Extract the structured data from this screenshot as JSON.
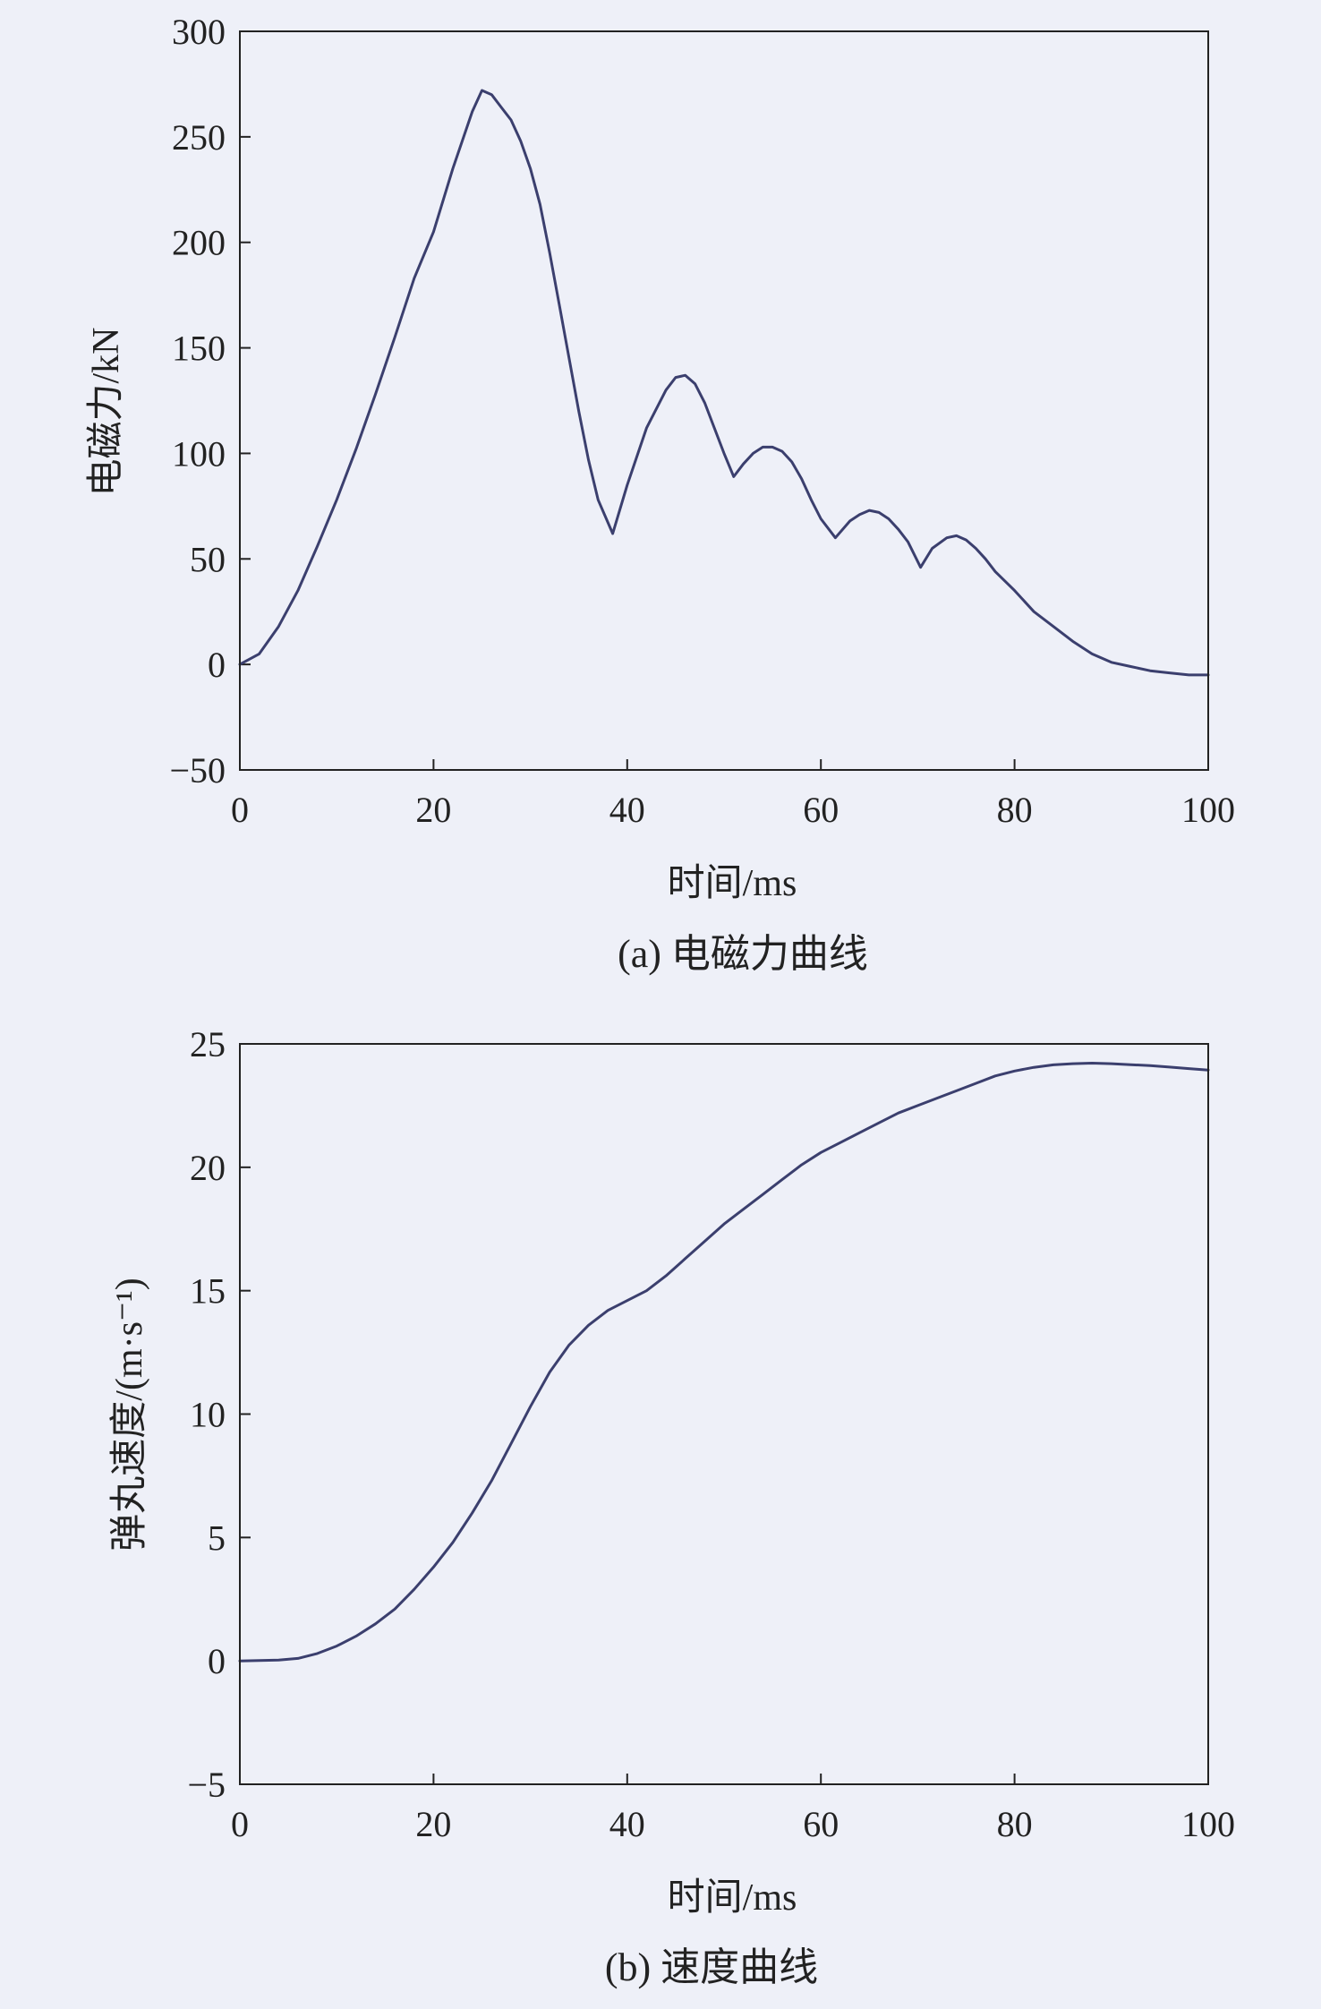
{
  "chart_data": [
    {
      "type": "line",
      "xlabel": "时间/ms",
      "ylabel": "电磁力/kN",
      "caption": "(a) 电磁力曲线",
      "xlim": [
        0,
        100
      ],
      "ylim": [
        -50,
        300
      ],
      "xticks": [
        "0",
        "20",
        "40",
        "60",
        "80",
        "100"
      ],
      "yticks": [
        "−50",
        "0",
        "50",
        "100",
        "150",
        "200",
        "250",
        "300"
      ],
      "grid": false,
      "color": "#3b3f6e",
      "series": [
        {
          "x": [
            0,
            2,
            4,
            6,
            8,
            10,
            12,
            14,
            16,
            18,
            20,
            22,
            24,
            25,
            26,
            27,
            28,
            29,
            30,
            31,
            32,
            33,
            34,
            35,
            36,
            37,
            38.5,
            40,
            42,
            44,
            45,
            46,
            47,
            48,
            49,
            50,
            51,
            52,
            53,
            54,
            55,
            56,
            57,
            58,
            59,
            60,
            61.5,
            63,
            64,
            65,
            66,
            67,
            68,
            69,
            70.3,
            71.5,
            73,
            74,
            75,
            76,
            77,
            78,
            80,
            82,
            84,
            86,
            88,
            90,
            92,
            94,
            96,
            98,
            100
          ],
          "y": [
            0,
            5,
            18,
            35,
            56,
            78,
            102,
            128,
            155,
            183,
            205,
            235,
            262,
            272,
            270,
            264,
            258,
            248,
            235,
            218,
            195,
            170,
            145,
            120,
            97,
            78,
            62,
            85,
            112,
            130,
            136,
            137,
            133,
            124,
            112,
            100,
            89,
            95,
            100,
            103,
            103,
            101,
            96,
            88,
            78,
            69,
            60,
            68,
            71,
            73,
            72,
            69,
            64,
            58,
            46,
            55,
            60,
            61,
            59,
            55,
            50,
            44,
            35,
            25,
            18,
            11,
            5,
            1,
            -1,
            -3,
            -4,
            -5,
            -5
          ]
        }
      ]
    },
    {
      "type": "line",
      "xlabel": "时间/ms",
      "ylabel": "弹丸速度/(m·s⁻¹)",
      "caption": "(b) 速度曲线",
      "xlim": [
        0,
        100
      ],
      "ylim": [
        -5,
        25
      ],
      "xticks": [
        "0",
        "20",
        "40",
        "60",
        "80",
        "100"
      ],
      "yticks": [
        "−5",
        "0",
        "5",
        "10",
        "15",
        "20",
        "25"
      ],
      "grid": false,
      "color": "#3b3f6e",
      "series": [
        {
          "x": [
            0,
            4,
            6,
            8,
            10,
            12,
            14,
            16,
            18,
            20,
            22,
            24,
            26,
            28,
            30,
            32,
            34,
            36,
            38,
            40,
            42,
            44,
            46,
            48,
            50,
            52,
            54,
            56,
            58,
            60,
            62,
            64,
            66,
            68,
            70,
            72,
            74,
            76,
            78,
            80,
            82,
            84,
            86,
            88,
            90,
            92,
            94,
            96,
            98,
            100
          ],
          "y": [
            0,
            0.03,
            0.1,
            0.3,
            0.6,
            1.0,
            1.5,
            2.1,
            2.9,
            3.8,
            4.8,
            6.0,
            7.3,
            8.8,
            10.3,
            11.7,
            12.8,
            13.6,
            14.2,
            14.6,
            15.0,
            15.6,
            16.3,
            17.0,
            17.7,
            18.3,
            18.9,
            19.5,
            20.1,
            20.6,
            21.0,
            21.4,
            21.8,
            22.2,
            22.5,
            22.8,
            23.1,
            23.4,
            23.7,
            23.9,
            24.05,
            24.15,
            24.2,
            24.22,
            24.2,
            24.16,
            24.12,
            24.06,
            24.0,
            23.94
          ]
        }
      ]
    }
  ]
}
